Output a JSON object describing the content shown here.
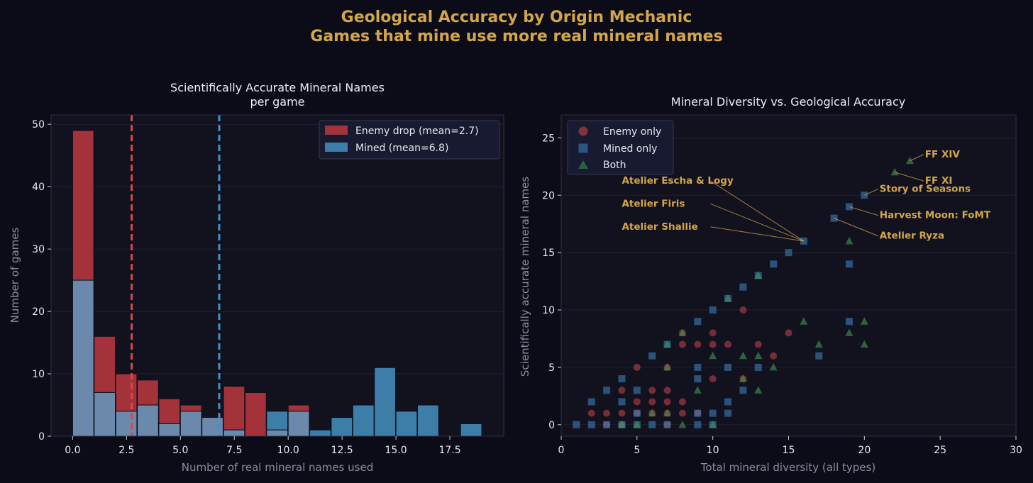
{
  "figure": {
    "title_line1": "Geological Accuracy by Origin Mechanic",
    "title_line2": "Games that mine use more real mineral names"
  },
  "colors": {
    "background": "#0c0c18",
    "axes_bg": "#12121f",
    "spine": "#2e2e44",
    "grid": "#20202f",
    "gold": "#d4a64a",
    "enemy_bar": "#a3323a",
    "mined_bar": "#3d7ea8",
    "overlap_bar": "#6b8aab",
    "enemy_line": "#d9474b",
    "mined_line": "#3f91cc",
    "enemy_point": "#d9474b",
    "mined_point": "#3f86c4",
    "both_point": "#3e9a52"
  },
  "chart_data": [
    {
      "type": "bar",
      "title_line1": "Scientifically Accurate Mineral Names",
      "title_line2": "per game",
      "xlabel": "Number of real mineral names used",
      "ylabel": "Number of games",
      "xlim": [
        -1,
        20
      ],
      "ylim": [
        0,
        51.5
      ],
      "xticks": [
        0,
        2.5,
        5,
        7.5,
        10,
        12.5,
        15,
        17.5
      ],
      "xtick_labels": [
        "0.0",
        "2.5",
        "5.0",
        "7.5",
        "10.0",
        "12.5",
        "15.0",
        "17.5"
      ],
      "yticks": [
        0,
        10,
        20,
        30,
        40,
        50
      ],
      "bin_width": 1,
      "bin_starts": [
        0,
        1,
        2,
        3,
        4,
        5,
        6,
        7,
        8,
        9,
        10,
        11,
        12,
        13,
        14,
        15,
        16,
        17,
        18
      ],
      "series": [
        {
          "name": "Enemy drop (mean=2.7)",
          "mean": 2.74,
          "values": [
            49,
            16,
            10,
            9,
            6,
            5,
            3,
            8,
            7,
            1,
            5,
            0,
            0,
            0,
            0,
            0,
            0,
            0,
            0
          ]
        },
        {
          "name": "Mined (mean=6.8)",
          "mean": 6.8,
          "values": [
            25,
            7,
            4,
            5,
            2,
            4,
            3,
            1,
            0,
            4,
            4,
            1,
            3,
            5,
            11,
            4,
            5,
            0,
            2
          ]
        }
      ],
      "legend_position": "upper-right",
      "grid": "horizontal"
    },
    {
      "type": "scatter",
      "title": "Mineral Diversity vs. Geological Accuracy",
      "xlabel": "Total mineral diversity (all types)",
      "ylabel": "Scientifically accurate mineral names",
      "xlim": [
        0,
        30
      ],
      "ylim": [
        -1,
        27
      ],
      "xticks": [
        0,
        5,
        10,
        15,
        20,
        25,
        30
      ],
      "yticks": [
        0,
        5,
        10,
        15,
        20,
        25
      ],
      "legend_position": "upper-left",
      "grid": "horizontal",
      "series": [
        {
          "name": "Enemy only",
          "marker": "circle",
          "points": [
            [
              2,
              1
            ],
            [
              3,
              0
            ],
            [
              3,
              1
            ],
            [
              4,
              0
            ],
            [
              4,
              1
            ],
            [
              4,
              3
            ],
            [
              5,
              1
            ],
            [
              5,
              2
            ],
            [
              5,
              5
            ],
            [
              6,
              1
            ],
            [
              6,
              2
            ],
            [
              6,
              3
            ],
            [
              7,
              0
            ],
            [
              7,
              1
            ],
            [
              7,
              2
            ],
            [
              7,
              3
            ],
            [
              7,
              5
            ],
            [
              8,
              1
            ],
            [
              8,
              2
            ],
            [
              8,
              7
            ],
            [
              8,
              8
            ],
            [
              9,
              1
            ],
            [
              9,
              7
            ],
            [
              10,
              4
            ],
            [
              10,
              7
            ],
            [
              10,
              8
            ],
            [
              11,
              7
            ],
            [
              12,
              4
            ],
            [
              12,
              10
            ],
            [
              13,
              7
            ],
            [
              14,
              6
            ],
            [
              15,
              8
            ]
          ]
        },
        {
          "name": "Mined only",
          "marker": "square",
          "points": [
            [
              1,
              0
            ],
            [
              2,
              0
            ],
            [
              2,
              2
            ],
            [
              3,
              0
            ],
            [
              3,
              3
            ],
            [
              4,
              0
            ],
            [
              4,
              2
            ],
            [
              4,
              4
            ],
            [
              5,
              0
            ],
            [
              5,
              1
            ],
            [
              5,
              3
            ],
            [
              6,
              0
            ],
            [
              6,
              6
            ],
            [
              7,
              0
            ],
            [
              7,
              7
            ],
            [
              9,
              0
            ],
            [
              9,
              1
            ],
            [
              9,
              4
            ],
            [
              9,
              5
            ],
            [
              9,
              9
            ],
            [
              10,
              0
            ],
            [
              10,
              1
            ],
            [
              10,
              10
            ],
            [
              11,
              1
            ],
            [
              11,
              2
            ],
            [
              11,
              5
            ],
            [
              11,
              11
            ],
            [
              12,
              3
            ],
            [
              12,
              12
            ],
            [
              13,
              5
            ],
            [
              13,
              13
            ],
            [
              14,
              14
            ],
            [
              15,
              15
            ],
            [
              16,
              16
            ],
            [
              17,
              6
            ],
            [
              18,
              18
            ],
            [
              19,
              9
            ],
            [
              19,
              14
            ],
            [
              19,
              19
            ],
            [
              20,
              20
            ]
          ]
        },
        {
          "name": "Both",
          "marker": "triangle",
          "points": [
            [
              4,
              0
            ],
            [
              5,
              0
            ],
            [
              6,
              1
            ],
            [
              7,
              1
            ],
            [
              7,
              5
            ],
            [
              7,
              7
            ],
            [
              8,
              0
            ],
            [
              8,
              8
            ],
            [
              9,
              3
            ],
            [
              10,
              0
            ],
            [
              10,
              6
            ],
            [
              11,
              11
            ],
            [
              12,
              4
            ],
            [
              12,
              6
            ],
            [
              13,
              3
            ],
            [
              13,
              6
            ],
            [
              13,
              13
            ],
            [
              14,
              5
            ],
            [
              16,
              9
            ],
            [
              17,
              7
            ],
            [
              19,
              8
            ],
            [
              19,
              16
            ],
            [
              20,
              7
            ],
            [
              20,
              9
            ],
            [
              22,
              22
            ],
            [
              23,
              23
            ]
          ]
        }
      ],
      "annotations": [
        {
          "text": "FF XIV",
          "point": [
            23,
            23
          ],
          "label_at": [
            24,
            23.3
          ]
        },
        {
          "text": "FF XI",
          "point": [
            22,
            22
          ],
          "label_at": [
            24,
            21.0
          ]
        },
        {
          "text": "Story of Seasons",
          "point": [
            20,
            20
          ],
          "label_at": [
            21,
            20.3
          ]
        },
        {
          "text": "Harvest Moon: FoMT",
          "point": [
            19,
            19
          ],
          "label_at": [
            21,
            18.0
          ]
        },
        {
          "text": "Atelier Ryza",
          "point": [
            18,
            18
          ],
          "label_at": [
            21,
            16.2
          ]
        },
        {
          "text": "Atelier Escha & Logy",
          "point": [
            16,
            16
          ],
          "label_at": [
            4,
            21.0
          ]
        },
        {
          "text": "Atelier Firis",
          "point": [
            16,
            16
          ],
          "label_at": [
            4,
            19.0
          ]
        },
        {
          "text": "Atelier Shallie",
          "point": [
            16,
            16
          ],
          "label_at": [
            4,
            17.0
          ]
        }
      ]
    }
  ]
}
